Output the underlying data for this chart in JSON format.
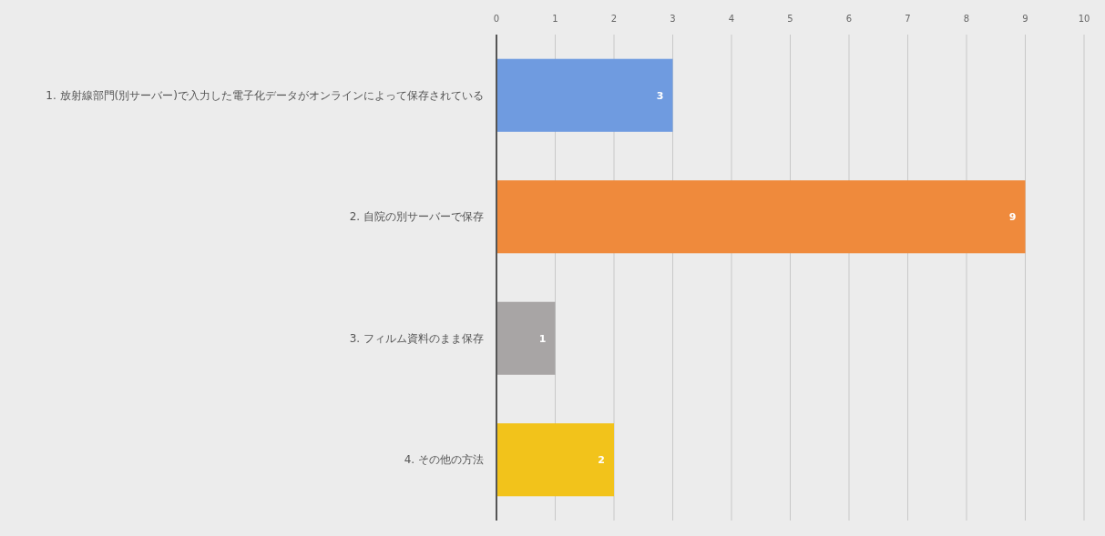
{
  "chart_data": {
    "type": "bar",
    "orientation": "horizontal",
    "categories": [
      "1. 放射線部門(別サーバー)で入力した電子化データがオンラインによって保存されている",
      "2. 自院の別サーバーで保存",
      "3. フィルム資料のまま保存",
      "4. その他の方法"
    ],
    "values": [
      3,
      9,
      1,
      2
    ],
    "colors": [
      "#6f9be0",
      "#ef8a3c",
      "#a8a5a5",
      "#f2c31b"
    ],
    "xlim": [
      0,
      10
    ],
    "xticks": [
      0,
      1,
      2,
      3,
      4,
      5,
      6,
      7,
      8,
      9,
      10
    ],
    "grid": "x",
    "data_labels": true
  }
}
